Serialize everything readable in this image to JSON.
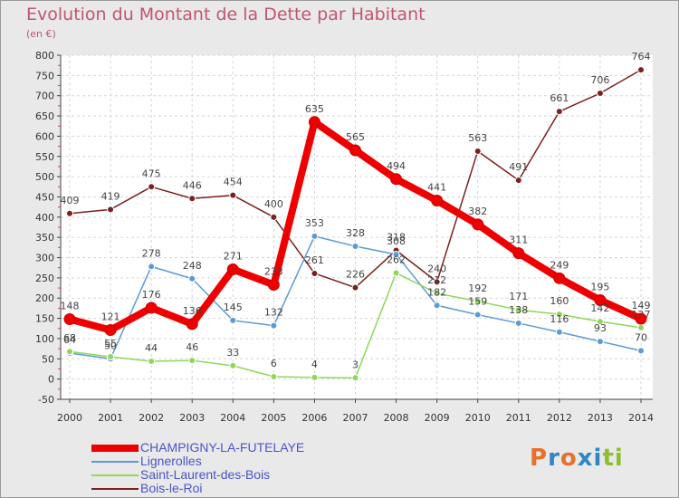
{
  "title": "Evolution du Montant de la Dette par Habitant",
  "subtitle": "(en €)",
  "logo": {
    "letters": [
      "P",
      "r",
      "o",
      "x",
      "i",
      "t",
      "i"
    ],
    "colors": [
      "#e8702a",
      "#2e86c8",
      "#e8702a",
      "#2e86c8",
      "#2e86c8",
      "#8cbf2e",
      "#8cbf2e"
    ]
  },
  "chart_data": {
    "type": "line",
    "x": [
      "2000",
      "2001",
      "2002",
      "2003",
      "2004",
      "2005",
      "2006",
      "2007",
      "2008",
      "2009",
      "2010",
      "2011",
      "2012",
      "2013",
      "2014"
    ],
    "ylim": [
      -50,
      800
    ],
    "yticks": [
      -50,
      0,
      50,
      100,
      150,
      200,
      250,
      300,
      350,
      400,
      450,
      500,
      550,
      600,
      650,
      700,
      750,
      800
    ],
    "ytick_labels": [
      "-50",
      "0",
      "50",
      "100",
      "150",
      "200",
      "250",
      "300",
      "350",
      "400",
      "450",
      "500",
      "550",
      "600",
      "650",
      "700",
      "750",
      "800"
    ],
    "grid": true,
    "legend_position": "bottom-left",
    "series": [
      {
        "name": "CHAMPIGNY-LA-FUTELAYE",
        "color": "#ee0000",
        "stroke": 8,
        "radius": 6,
        "markerFill": "#ee0000",
        "values": [
          148,
          121,
          176,
          136,
          271,
          233,
          635,
          565,
          494,
          441,
          382,
          311,
          249,
          195,
          149
        ],
        "labels": [
          "148",
          "121",
          "176",
          "136",
          "271",
          "233",
          "635",
          "565",
          "494",
          "441",
          "382",
          "311",
          "249",
          "195",
          "149"
        ]
      },
      {
        "name": "Lignerolles",
        "color": "#5b9bd5",
        "stroke": 1.5,
        "radius": 3.5,
        "markerFill": "#5b9bd5",
        "values": [
          64,
          50,
          278,
          248,
          145,
          132,
          353,
          328,
          308,
          182,
          159,
          138,
          116,
          93,
          70
        ],
        "labels": [
          "64",
          "50",
          "278",
          "248",
          "145",
          "132",
          "353",
          "328",
          "308",
          "182",
          "159",
          "138",
          "116",
          "93",
          "70"
        ]
      },
      {
        "name": "Saint-Laurent-des-Bois",
        "color": "#8fd65a",
        "stroke": 1.5,
        "radius": 3.5,
        "markerFill": "#8fd65a",
        "values": [
          68,
          55,
          44,
          46,
          33,
          6,
          4,
          3,
          262,
          212,
          192,
          171,
          160,
          142,
          127
        ],
        "labels": [
          "68",
          "55",
          "44",
          "46",
          "33",
          "6",
          "4",
          "3",
          "262",
          "212",
          "192",
          "171",
          "160",
          "142",
          "127"
        ]
      },
      {
        "name": "Bois-le-Roi",
        "color": "#7a2020",
        "stroke": 1.5,
        "radius": 3.5,
        "markerFill": "#7a2020",
        "values": [
          409,
          419,
          475,
          446,
          454,
          400,
          261,
          226,
          318,
          240,
          563,
          491,
          661,
          706,
          764
        ],
        "labels": [
          "409",
          "419",
          "475",
          "446",
          "454",
          "400",
          "261",
          "226",
          "318",
          "240",
          "563",
          "491",
          "661",
          "706",
          "764"
        ]
      }
    ]
  }
}
